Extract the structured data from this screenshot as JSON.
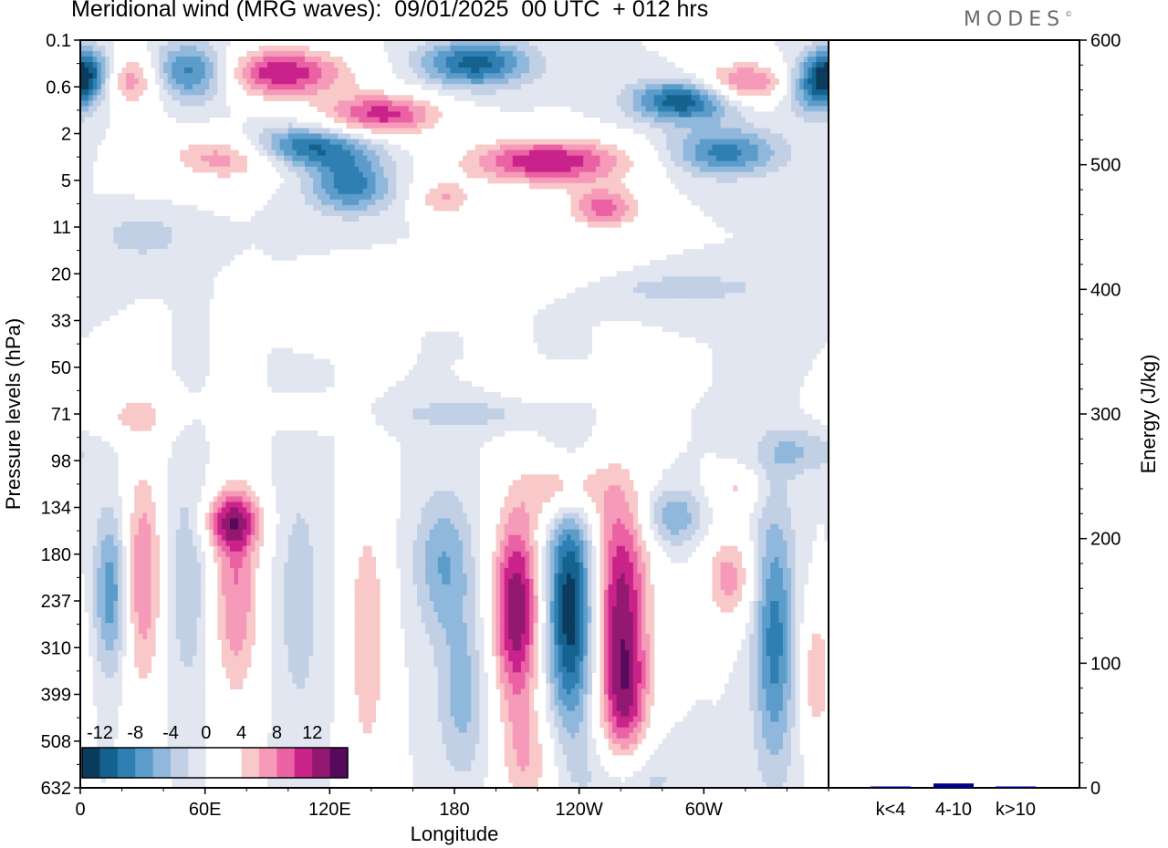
{
  "header": {
    "title": "Meridional wind (MRG waves):  09/01/2025  00 UTC  + 012 hrs",
    "logo": "MODES",
    "logo_mark": "©"
  },
  "chart_data": [
    {
      "type": "heatmap",
      "title": "Meridional wind (MRG waves):  09/01/2025  00 UTC  + 012 hrs",
      "xlabel": "Longitude",
      "ylabel": "Pressure levels (hPa)",
      "x_ticks": [
        "0",
        "60E",
        "120E",
        "180",
        "120W",
        "60W"
      ],
      "x_tick_degrees": [
        0,
        60,
        120,
        180,
        240,
        300
      ],
      "xlim": [
        0,
        360
      ],
      "y_ticks": [
        "0.1",
        "0.6",
        "2",
        "5",
        "11",
        "20",
        "33",
        "50",
        "71",
        "98",
        "134",
        "180",
        "237",
        "310",
        "399",
        "508",
        "632"
      ],
      "colorbar": {
        "labels": [
          "-12",
          "-8",
          "-4",
          "0",
          "4",
          "8",
          "12"
        ],
        "levels": [
          -14,
          -12,
          -10,
          -8,
          -6,
          -4,
          -2,
          0,
          2,
          4,
          6,
          8,
          10,
          12,
          14
        ],
        "colors": [
          "#0b3c5e",
          "#15628f",
          "#2f7fb2",
          "#5c9ccb",
          "#90b8dc",
          "#c2d0e6",
          "#e2e6f0",
          "#ffffff",
          "#ffffff",
          "#f9c8c8",
          "#f59ab8",
          "#ea62a3",
          "#c9228b",
          "#921870",
          "#560a5e"
        ]
      },
      "blobs": [
        {
          "lon": 4,
          "lev": 0.7,
          "w": 14,
          "h": 0.55,
          "v": -13
        },
        {
          "lon": 24,
          "lev": 0.8,
          "w": 22,
          "h": 0.6,
          "v": 12
        },
        {
          "lon": 50,
          "lev": 0.7,
          "w": 24,
          "h": 0.6,
          "v": -13
        },
        {
          "lon": 95,
          "lev": 0.7,
          "w": 34,
          "h": 0.55,
          "v": 12
        },
        {
          "lon": 145,
          "lev": 1.6,
          "w": 28,
          "h": 0.45,
          "v": 11
        },
        {
          "lon": 108,
          "lev": 2.3,
          "w": 30,
          "h": 0.45,
          "v": -11
        },
        {
          "lon": 72,
          "lev": 2.5,
          "w": 30,
          "h": 0.5,
          "v": 8
        },
        {
          "lon": 130,
          "lev": 3.1,
          "w": 20,
          "h": 0.6,
          "v": -9
        },
        {
          "lon": 190,
          "lev": 0.5,
          "w": 26,
          "h": 0.5,
          "v": -11
        },
        {
          "lon": 225,
          "lev": 2.6,
          "w": 40,
          "h": 0.5,
          "v": 12
        },
        {
          "lon": 252,
          "lev": 3.6,
          "w": 18,
          "h": 0.45,
          "v": 9
        },
        {
          "lon": 290,
          "lev": 1.3,
          "w": 24,
          "h": 0.45,
          "v": -12
        },
        {
          "lon": 310,
          "lev": 2.4,
          "w": 26,
          "h": 0.5,
          "v": -9
        },
        {
          "lon": 320,
          "lev": 0.9,
          "w": 24,
          "h": 0.45,
          "v": 9
        },
        {
          "lon": 355,
          "lev": 1.0,
          "w": 16,
          "h": 0.6,
          "v": -9
        },
        {
          "lon": 175,
          "lev": 3.4,
          "w": 14,
          "h": 0.4,
          "v": 6
        },
        {
          "lon": 30,
          "lev": 4.2,
          "w": 18,
          "h": 0.4,
          "v": -4
        },
        {
          "lon": 205,
          "lev": 5.0,
          "w": 44,
          "h": 0.4,
          "v": 4
        },
        {
          "lon": 290,
          "lev": 5.3,
          "w": 50,
          "h": 0.35,
          "v": -3
        },
        {
          "lon": 115,
          "lev": 6.0,
          "w": 14,
          "h": 0.4,
          "v": 4
        },
        {
          "lon": 185,
          "lev": 8.0,
          "w": 40,
          "h": 0.35,
          "v": -3
        },
        {
          "lon": 230,
          "lev": 7.4,
          "w": 22,
          "h": 0.3,
          "v": 4
        },
        {
          "lon": 25,
          "lev": 8.0,
          "w": 22,
          "h": 0.5,
          "v": 4
        },
        {
          "lon": 110,
          "lev": 8.0,
          "w": 20,
          "h": 0.3,
          "v": 3
        },
        {
          "lon": 345,
          "lev": 8.8,
          "w": 20,
          "h": 0.5,
          "v": -4
        },
        {
          "lon": 234,
          "lev": 9.6,
          "w": 18,
          "h": 0.7,
          "v": 8
        },
        {
          "lon": 73,
          "lev": 10.3,
          "w": 14,
          "h": 0.6,
          "v": 9
        },
        {
          "lon": 285,
          "lev": 10.2,
          "w": 14,
          "h": 0.6,
          "v": -6
        },
        {
          "lon": 315,
          "lev": 9.6,
          "w": 12,
          "h": 0.4,
          "v": 4
        },
        {
          "lon": 15,
          "lev": 11.8,
          "w": 8,
          "h": 1.7,
          "v": -8
        },
        {
          "lon": 30,
          "lev": 11.5,
          "w": 10,
          "h": 2.6,
          "v": 8
        },
        {
          "lon": 52,
          "lev": 11.5,
          "w": 10,
          "h": 2.5,
          "v": -4
        },
        {
          "lon": 75,
          "lev": 11.8,
          "w": 12,
          "h": 2.5,
          "v": 8
        },
        {
          "lon": 105,
          "lev": 12.0,
          "w": 12,
          "h": 3.0,
          "v": -3
        },
        {
          "lon": 138,
          "lev": 12.8,
          "w": 10,
          "h": 3.2,
          "v": 6
        },
        {
          "lon": 175,
          "lev": 11.2,
          "w": 14,
          "h": 1.5,
          "v": -6
        },
        {
          "lon": 184,
          "lev": 14.0,
          "w": 12,
          "h": 1.8,
          "v": -5
        },
        {
          "lon": 210,
          "lev": 12.2,
          "w": 12,
          "h": 2.2,
          "v": 14
        },
        {
          "lon": 236,
          "lev": 12.2,
          "w": 12,
          "h": 2.5,
          "v": -14
        },
        {
          "lon": 260,
          "lev": 11.8,
          "w": 14,
          "h": 2.4,
          "v": 12
        },
        {
          "lon": 262,
          "lev": 14.2,
          "w": 12,
          "h": 1.6,
          "v": 9
        },
        {
          "lon": 312,
          "lev": 11.5,
          "w": 12,
          "h": 1.0,
          "v": 7
        },
        {
          "lon": 334,
          "lev": 12.8,
          "w": 10,
          "h": 2.8,
          "v": -9
        },
        {
          "lon": 354,
          "lev": 13.6,
          "w": 8,
          "h": 1.5,
          "v": 6
        },
        {
          "lon": 215,
          "lev": 15.5,
          "w": 14,
          "h": 1.2,
          "v": 5
        },
        {
          "lon": 265,
          "lev": 15.8,
          "w": 22,
          "h": 0.8,
          "v": -4
        }
      ]
    },
    {
      "type": "bar",
      "categories": [
        "k<4",
        "4-10",
        "k>10"
      ],
      "values": [
        0.3,
        3.5,
        0.2
      ],
      "ylabel": "Energy (J/kg)",
      "ylim": [
        0,
        600
      ],
      "y_ticks": [
        0,
        100,
        200,
        300,
        400,
        500,
        600
      ],
      "bar_color": "#00008b"
    }
  ]
}
